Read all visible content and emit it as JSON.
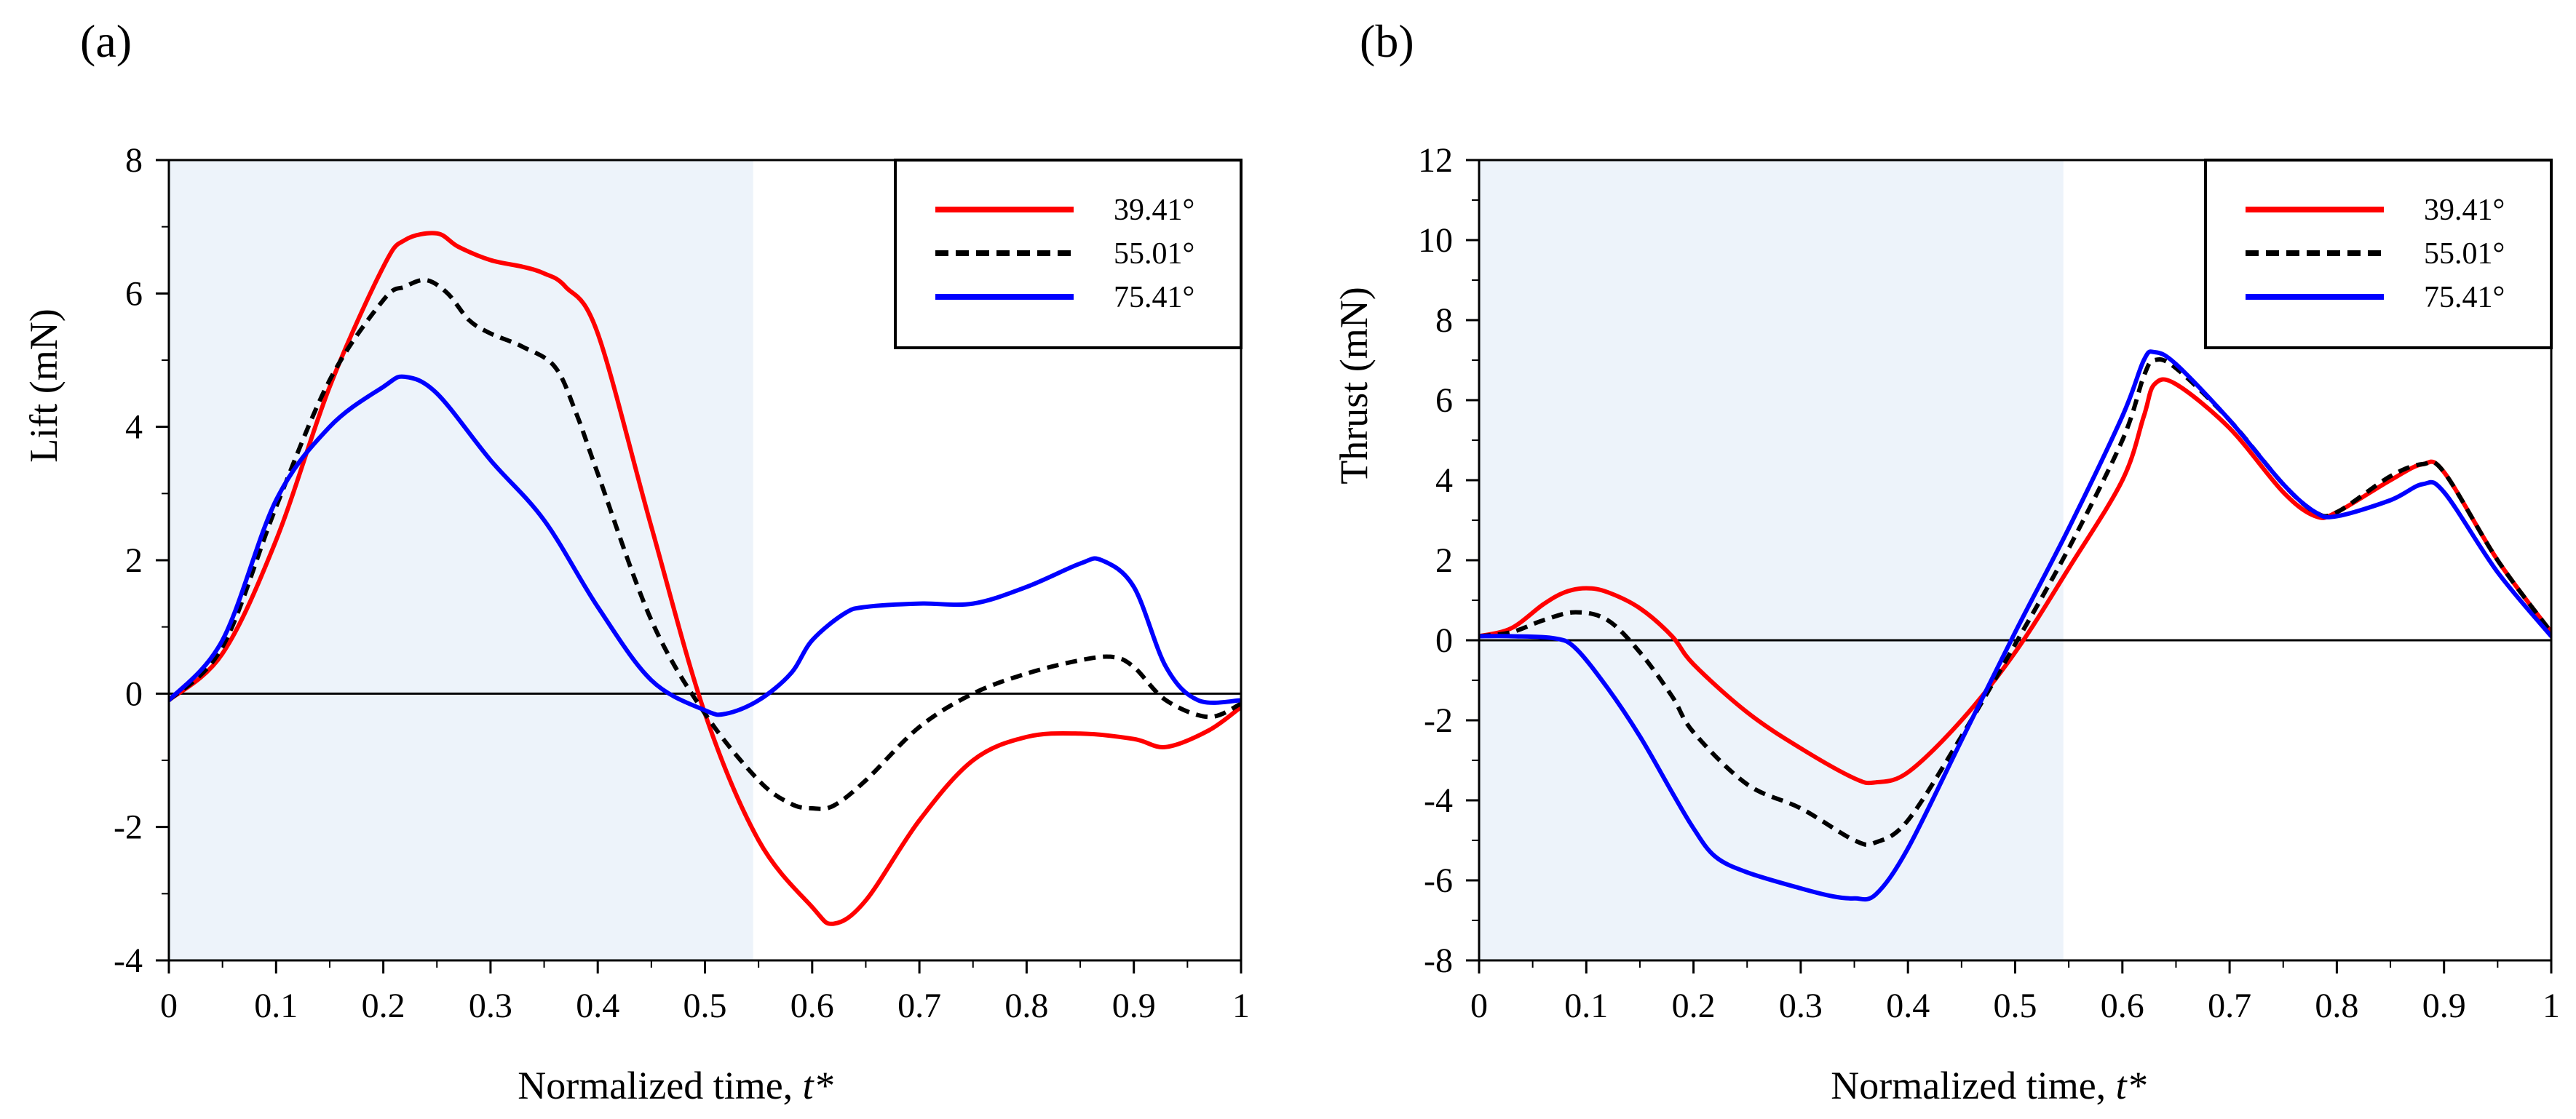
{
  "chart_data": [
    {
      "panel_label": "(a)",
      "type": "line",
      "xlabel": "Normalized time, ",
      "xlabel_var": "t*",
      "ylabel": "Lift (mN)",
      "xlim": [
        0,
        1
      ],
      "ylim": [
        -4,
        8
      ],
      "xticks": [
        0,
        0.1,
        0.2,
        0.3,
        0.4,
        0.5,
        0.6,
        0.7,
        0.8,
        0.9,
        1
      ],
      "xtick_labels": [
        "0",
        "0.1",
        "0.2",
        "0.3",
        "0.4",
        "0.5",
        "0.6",
        "0.7",
        "0.8",
        "0.9",
        "1"
      ],
      "yticks": [
        -4,
        -2,
        0,
        2,
        4,
        6,
        8
      ],
      "ytick_labels": [
        "-4",
        "-2",
        "0",
        "2",
        "4",
        "6",
        "8"
      ],
      "shaded_region": [
        0,
        0.545
      ],
      "zero_line": true,
      "legend_position": "top-right",
      "series": [
        {
          "name": "39.41°",
          "color": "#ff0000",
          "style": "solid",
          "x": [
            0,
            0.05,
            0.1,
            0.15,
            0.2,
            0.22,
            0.25,
            0.27,
            0.3,
            0.33,
            0.35,
            0.37,
            0.4,
            0.45,
            0.5,
            0.55,
            0.6,
            0.62,
            0.65,
            0.7,
            0.75,
            0.8,
            0.85,
            0.9,
            0.93,
            0.97,
            1
          ],
          "y": [
            -0.1,
            0.6,
            2.3,
            4.6,
            6.4,
            6.8,
            6.9,
            6.7,
            6.5,
            6.4,
            6.3,
            6.1,
            5.4,
            2.5,
            -0.3,
            -2.2,
            -3.2,
            -3.45,
            -3.1,
            -1.9,
            -1.0,
            -0.65,
            -0.6,
            -0.68,
            -0.8,
            -0.55,
            -0.2
          ]
        },
        {
          "name": "55.01°",
          "color": "#000000",
          "style": "dashed",
          "x": [
            0,
            0.05,
            0.1,
            0.15,
            0.2,
            0.22,
            0.24,
            0.26,
            0.28,
            0.3,
            0.33,
            0.36,
            0.38,
            0.4,
            0.45,
            0.5,
            0.55,
            0.58,
            0.6,
            0.62,
            0.65,
            0.7,
            0.75,
            0.8,
            0.85,
            0.88,
            0.9,
            0.93,
            0.97,
            1
          ],
          "y": [
            -0.1,
            0.7,
            2.8,
            4.7,
            5.9,
            6.1,
            6.2,
            6.0,
            5.6,
            5.4,
            5.2,
            4.9,
            4.2,
            3.3,
            1.1,
            -0.3,
            -1.3,
            -1.65,
            -1.72,
            -1.68,
            -1.3,
            -0.5,
            0.0,
            0.3,
            0.5,
            0.55,
            0.4,
            -0.1,
            -0.35,
            -0.15
          ]
        },
        {
          "name": "75.41°",
          "color": "#0000ff",
          "style": "solid",
          "x": [
            0,
            0.05,
            0.1,
            0.15,
            0.2,
            0.22,
            0.25,
            0.3,
            0.35,
            0.4,
            0.45,
            0.5,
            0.52,
            0.55,
            0.58,
            0.6,
            0.63,
            0.65,
            0.7,
            0.75,
            0.8,
            0.85,
            0.87,
            0.9,
            0.93,
            0.96,
            1
          ],
          "y": [
            -0.1,
            0.8,
            2.9,
            4.0,
            4.6,
            4.75,
            4.5,
            3.5,
            2.6,
            1.3,
            0.2,
            -0.25,
            -0.3,
            -0.1,
            0.3,
            0.8,
            1.2,
            1.3,
            1.35,
            1.35,
            1.6,
            1.95,
            2.0,
            1.6,
            0.4,
            -0.1,
            -0.1
          ]
        }
      ]
    },
    {
      "panel_label": "(b)",
      "type": "line",
      "xlabel": "Normalized time, ",
      "xlabel_var": "t*",
      "ylabel": "Thrust (mN)",
      "xlim": [
        0,
        1
      ],
      "ylim": [
        -8,
        12
      ],
      "xticks": [
        0,
        0.1,
        0.2,
        0.3,
        0.4,
        0.5,
        0.6,
        0.7,
        0.8,
        0.9,
        1
      ],
      "xtick_labels": [
        "0",
        "0.1",
        "0.2",
        "0.3",
        "0.4",
        "0.5",
        "0.6",
        "0.7",
        "0.8",
        "0.9",
        "1"
      ],
      "yticks": [
        -8,
        -6,
        -4,
        -2,
        0,
        2,
        4,
        6,
        8,
        10,
        12
      ],
      "ytick_labels": [
        "-8",
        "-6",
        "-4",
        "-2",
        "0",
        "2",
        "4",
        "6",
        "8",
        "10",
        "12"
      ],
      "shaded_region": [
        0,
        0.545
      ],
      "zero_line": true,
      "legend_position": "top-right",
      "series": [
        {
          "name": "39.41°",
          "color": "#ff0000",
          "style": "solid",
          "x": [
            0,
            0.03,
            0.06,
            0.08,
            0.1,
            0.12,
            0.15,
            0.18,
            0.2,
            0.25,
            0.3,
            0.35,
            0.37,
            0.4,
            0.45,
            0.5,
            0.55,
            0.6,
            0.62,
            0.63,
            0.65,
            0.7,
            0.75,
            0.78,
            0.8,
            0.85,
            0.88,
            0.9,
            0.95,
            1
          ],
          "y": [
            0.1,
            0.3,
            0.9,
            1.2,
            1.3,
            1.2,
            0.8,
            0.1,
            -0.6,
            -1.8,
            -2.7,
            -3.45,
            -3.55,
            -3.3,
            -2.0,
            -0.3,
            1.8,
            4.0,
            5.6,
            6.4,
            6.4,
            5.3,
            3.7,
            3.1,
            3.2,
            4.0,
            4.4,
            4.2,
            2.0,
            0.2
          ]
        },
        {
          "name": "55.01°",
          "color": "#000000",
          "style": "dashed",
          "x": [
            0,
            0.03,
            0.06,
            0.09,
            0.12,
            0.15,
            0.18,
            0.2,
            0.25,
            0.3,
            0.35,
            0.37,
            0.4,
            0.45,
            0.5,
            0.55,
            0.6,
            0.62,
            0.63,
            0.65,
            0.7,
            0.75,
            0.78,
            0.8,
            0.85,
            0.88,
            0.9,
            0.95,
            1
          ],
          "y": [
            0.1,
            0.2,
            0.5,
            0.7,
            0.5,
            -0.3,
            -1.4,
            -2.3,
            -3.6,
            -4.2,
            -5.0,
            -5.05,
            -4.5,
            -2.4,
            -0.1,
            2.3,
            5.0,
            6.6,
            7.0,
            6.8,
            5.5,
            3.9,
            3.2,
            3.2,
            4.1,
            4.4,
            4.2,
            2.0,
            0.2
          ]
        },
        {
          "name": "75.41°",
          "color": "#0000ff",
          "style": "solid",
          "x": [
            0,
            0.03,
            0.07,
            0.09,
            0.12,
            0.15,
            0.18,
            0.2,
            0.22,
            0.25,
            0.3,
            0.33,
            0.35,
            0.37,
            0.4,
            0.45,
            0.5,
            0.55,
            0.6,
            0.62,
            0.63,
            0.65,
            0.7,
            0.75,
            0.78,
            0.8,
            0.85,
            0.88,
            0.9,
            0.95,
            1
          ],
          "y": [
            0.1,
            0.1,
            0.05,
            -0.2,
            -1.2,
            -2.4,
            -3.8,
            -4.7,
            -5.4,
            -5.8,
            -6.2,
            -6.4,
            -6.45,
            -6.35,
            -5.2,
            -2.5,
            0.2,
            2.8,
            5.6,
            7.0,
            7.2,
            6.9,
            5.5,
            3.9,
            3.2,
            3.1,
            3.5,
            3.9,
            3.7,
            1.7,
            0.1
          ]
        }
      ]
    }
  ]
}
